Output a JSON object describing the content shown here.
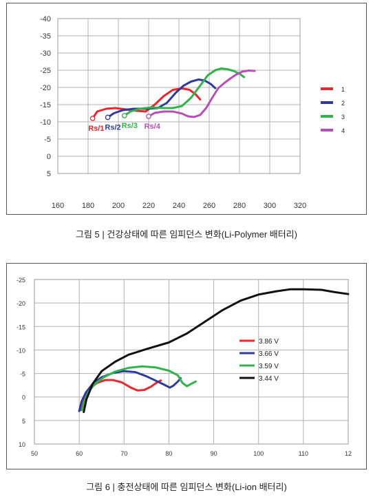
{
  "captions": {
    "fig5": "그림 5 | 건강상태에 따른 임피던스 변화(Li-Polymer 배터리)",
    "fig6": "그림 6 | 충전상태에 따른 임피던스 변화(Li-ion 배터리)"
  },
  "chart_data": [
    {
      "type": "line",
      "title": "",
      "xlabel": "",
      "ylabel": "",
      "xlim": [
        160,
        320
      ],
      "ylim": [
        5,
        -40
      ],
      "x_ticks": [
        "160",
        "180",
        "200",
        "220",
        "240",
        "260",
        "280",
        "300",
        "320"
      ],
      "y_ticks": [
        "-40",
        "-35",
        "-30",
        "-25",
        "-20",
        "-15",
        "-10",
        "-5",
        "0",
        "5"
      ],
      "grid": true,
      "legend": "right",
      "annotations": [
        {
          "text": "Rs/1",
          "x": 181,
          "y": -11,
          "color": "#e8262c"
        },
        {
          "text": "Rs/2",
          "x": 192,
          "y": -11.3,
          "color": "#2e3a9e"
        },
        {
          "text": "Rs/3",
          "x": 203,
          "y": -11.8,
          "color": "#2fb34a"
        },
        {
          "text": "Rs/4",
          "x": 218,
          "y": -11.6,
          "color": "#b54fb5"
        }
      ],
      "series": [
        {
          "name": "1",
          "color": "#e8262c",
          "points": [
            [
              183,
              -11
            ],
            [
              186,
              -13
            ],
            [
              192,
              -13.8
            ],
            [
              198,
              -14
            ],
            [
              205,
              -13.6
            ],
            [
              212,
              -13.2
            ],
            [
              218,
              -13
            ],
            [
              224,
              -15
            ],
            [
              230,
              -17.5
            ],
            [
              236,
              -19.3
            ],
            [
              242,
              -19.7
            ],
            [
              247,
              -19.3
            ],
            [
              251,
              -18
            ],
            [
              254,
              -16.5
            ]
          ]
        },
        {
          "name": "2",
          "color": "#2e3a9e",
          "points": [
            [
              193,
              -11.3
            ],
            [
              197,
              -12.5
            ],
            [
              203,
              -13.4
            ],
            [
              210,
              -13.8
            ],
            [
              218,
              -13.8
            ],
            [
              226,
              -14
            ],
            [
              232,
              -15.5
            ],
            [
              238,
              -18.5
            ],
            [
              243,
              -20.5
            ],
            [
              248,
              -21.7
            ],
            [
              253,
              -22.3
            ],
            [
              257,
              -22
            ],
            [
              261,
              -21
            ],
            [
              264,
              -19.8
            ]
          ]
        },
        {
          "name": "3",
          "color": "#2fb34a",
          "points": [
            [
              204,
              -11.8
            ],
            [
              208,
              -13
            ],
            [
              214,
              -13.8
            ],
            [
              222,
              -14.2
            ],
            [
              230,
              -14
            ],
            [
              236,
              -14
            ],
            [
              242,
              -14.6
            ],
            [
              248,
              -17
            ],
            [
              254,
              -20.5
            ],
            [
              259,
              -23.5
            ],
            [
              264,
              -25
            ],
            [
              268,
              -25.5
            ],
            [
              272,
              -25.3
            ],
            [
              276,
              -24.8
            ],
            [
              280,
              -24
            ],
            [
              283,
              -23
            ]
          ]
        },
        {
          "name": "4",
          "color": "#b54fb5",
          "points": [
            [
              220,
              -11.6
            ],
            [
              224,
              -12.6
            ],
            [
              230,
              -13
            ],
            [
              236,
              -13
            ],
            [
              242,
              -12.4
            ],
            [
              246,
              -11.6
            ],
            [
              250,
              -11.4
            ],
            [
              254,
              -12
            ],
            [
              258,
              -14
            ],
            [
              262,
              -17
            ],
            [
              266,
              -19.8
            ],
            [
              270,
              -21.3
            ],
            [
              274,
              -22.6
            ],
            [
              278,
              -23.8
            ],
            [
              282,
              -24.6
            ],
            [
              286,
              -24.9
            ],
            [
              290,
              -24.8
            ]
          ]
        }
      ]
    },
    {
      "type": "line",
      "title": "",
      "xlabel": "",
      "ylabel": "",
      "xlim": [
        50,
        120
      ],
      "ylim": [
        10,
        -25
      ],
      "x_ticks": [
        "50",
        "60",
        "70",
        "80",
        "90",
        "100",
        "110",
        "12"
      ],
      "y_ticks": [
        "-25",
        "-20",
        "-15",
        "-10",
        "-5",
        "0",
        "5",
        "10"
      ],
      "grid": true,
      "legend": "right",
      "series": [
        {
          "name": "3.86 V",
          "color": "#e8262c",
          "points": [
            [
              60.3,
              2.8
            ],
            [
              60.8,
              1
            ],
            [
              61.6,
              -0.8
            ],
            [
              62.6,
              -2
            ],
            [
              64,
              -3
            ],
            [
              65.8,
              -3.6
            ],
            [
              67.5,
              -3.6
            ],
            [
              69.5,
              -3.1
            ],
            [
              71.5,
              -2
            ],
            [
              73,
              -1.4
            ],
            [
              74.5,
              -1.5
            ],
            [
              76,
              -2.2
            ],
            [
              77.5,
              -3.2
            ],
            [
              78.2,
              -3.5
            ]
          ]
        },
        {
          "name": "3.66 V",
          "color": "#2e3a9e",
          "points": [
            [
              60,
              3
            ],
            [
              60.5,
              1
            ],
            [
              61.5,
              -1
            ],
            [
              63,
              -2.8
            ],
            [
              65,
              -4.2
            ],
            [
              67.5,
              -5.1
            ],
            [
              70,
              -5.5
            ],
            [
              72.5,
              -5.3
            ],
            [
              75,
              -4.4
            ],
            [
              77,
              -3.5
            ],
            [
              79,
              -2.6
            ],
            [
              80.2,
              -2
            ],
            [
              81,
              -2.4
            ],
            [
              82,
              -3.3
            ],
            [
              82.6,
              -4
            ]
          ]
        },
        {
          "name": "3.59 V",
          "color": "#2fb34a",
          "points": [
            [
              60.6,
              2.8
            ],
            [
              61.1,
              1
            ],
            [
              62,
              -1
            ],
            [
              63.5,
              -2.8
            ],
            [
              65.5,
              -4.2
            ],
            [
              68,
              -5.4
            ],
            [
              71,
              -6.2
            ],
            [
              74,
              -6.5
            ],
            [
              77,
              -6.3
            ],
            [
              80,
              -5.6
            ],
            [
              82,
              -4.6
            ],
            [
              83,
              -3
            ],
            [
              84,
              -2.3
            ],
            [
              85,
              -2.8
            ],
            [
              86,
              -3.3
            ]
          ]
        },
        {
          "name": "3.44 V",
          "color": "#111111",
          "points": [
            [
              61,
              3.2
            ],
            [
              61.6,
              0.5
            ],
            [
              63,
              -2.8
            ],
            [
              65,
              -5.5
            ],
            [
              68,
              -7.5
            ],
            [
              71,
              -9
            ],
            [
              75,
              -10.2
            ],
            [
              80,
              -11.6
            ],
            [
              84,
              -13.5
            ],
            [
              88,
              -16
            ],
            [
              92,
              -18.5
            ],
            [
              96,
              -20.5
            ],
            [
              100,
              -21.8
            ],
            [
              104,
              -22.5
            ],
            [
              107,
              -22.9
            ],
            [
              110,
              -22.9
            ],
            [
              114,
              -22.8
            ],
            [
              117,
              -22.3
            ],
            [
              120,
              -21.9
            ]
          ]
        }
      ]
    }
  ]
}
